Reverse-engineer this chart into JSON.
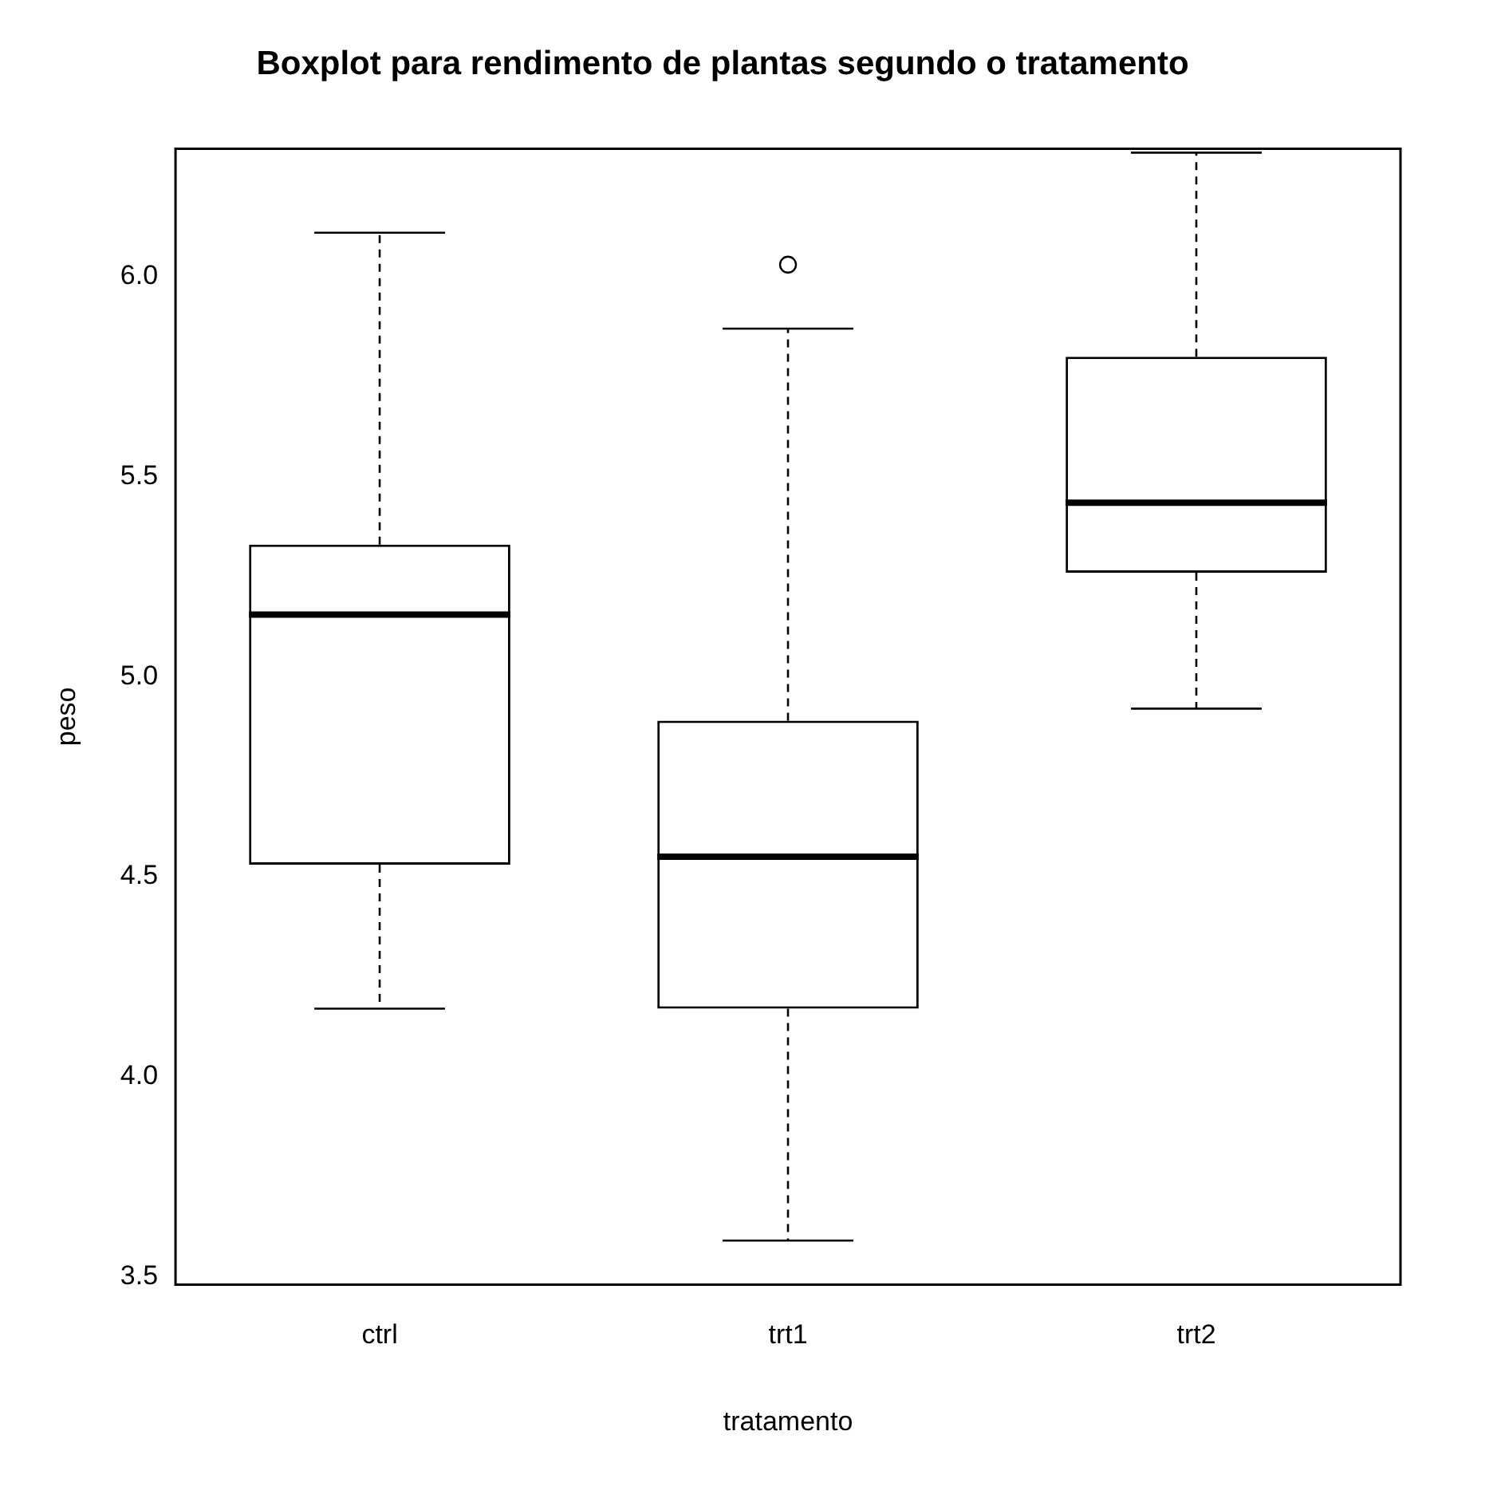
{
  "chart_data": {
    "type": "box",
    "title": "Boxplot para rendimento de plantas segundo o tratamento",
    "xlabel": "tratamento",
    "ylabel": "peso",
    "categories": [
      "ctrl",
      "trt1",
      "trt2"
    ],
    "boxes": [
      {
        "low": 4.17,
        "q1": 4.53,
        "median": 5.155,
        "q3": 5.33,
        "high": 6.11
      },
      {
        "low": 3.59,
        "q1": 4.17,
        "median": 4.55,
        "q3": 4.89,
        "high": 5.87,
        "outliers": [
          6.03
        ]
      },
      {
        "low": 4.92,
        "q1": 5.26,
        "median": 5.435,
        "q3": 5.8,
        "high": 6.31
      }
    ],
    "ylim": [
      3.48,
      6.32
    ],
    "yticks": [
      3.5,
      {
        "value": 4,
        "label": "4.0"
      },
      4.5,
      {
        "value": 5,
        "label": "5.0"
      },
      5.5,
      {
        "value": 6,
        "label": "6.0"
      }
    ]
  }
}
